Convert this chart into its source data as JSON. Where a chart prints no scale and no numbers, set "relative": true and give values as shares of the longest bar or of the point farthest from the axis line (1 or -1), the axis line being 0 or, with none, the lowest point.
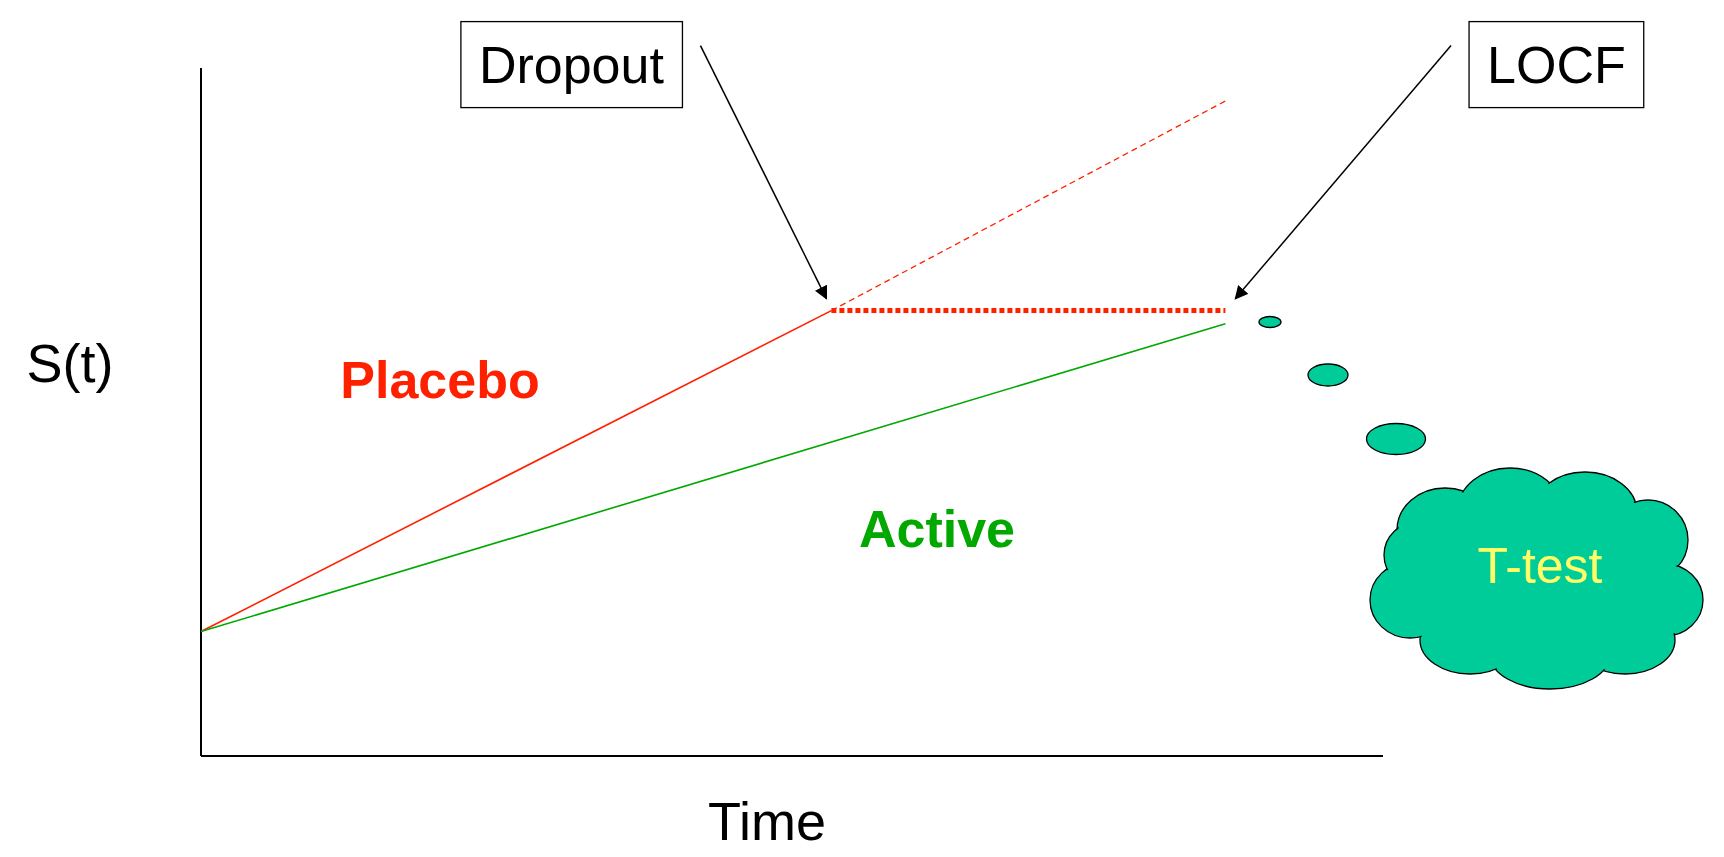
{
  "chart_data": {
    "type": "line",
    "relative": true,
    "xlabel": "Time",
    "ylabel": "S(t)",
    "marker": "none",
    "categories": [
      null,
      null,
      null,
      null,
      null,
      null,
      null,
      null,
      null,
      null,
      null,
      null,
      null,
      null,
      null,
      null
    ],
    "series": [
      {
        "name": "Placebo",
        "color": "#ff2000",
        "values": [
          0.19,
          null,
          null,
          null,
          null,
          null,
          null,
          null,
          0.68,
          null,
          null,
          null,
          null,
          null,
          null,
          null
        ]
      },
      {
        "color": "#ff2000",
        "values": [
          null,
          null,
          null,
          null,
          null,
          null,
          null,
          null,
          0.68,
          null,
          null,
          null,
          null,
          1.0,
          null,
          null
        ],
        "line_style": "dashed"
      },
      {
        "color": "#ff2000",
        "values": [
          null,
          null,
          null,
          null,
          null,
          null,
          null,
          null,
          0.68,
          null,
          null,
          null,
          null,
          0.68,
          null,
          null
        ],
        "line_style": "dotted"
      },
      {
        "name": "Active",
        "color": "#00a800",
        "values": [
          0.19,
          null,
          null,
          null,
          null,
          null,
          null,
          null,
          null,
          null,
          null,
          null,
          null,
          0.66,
          null,
          null
        ]
      }
    ],
    "annotations": [
      "Dropout",
      "LOCF",
      "T-test"
    ]
  }
}
